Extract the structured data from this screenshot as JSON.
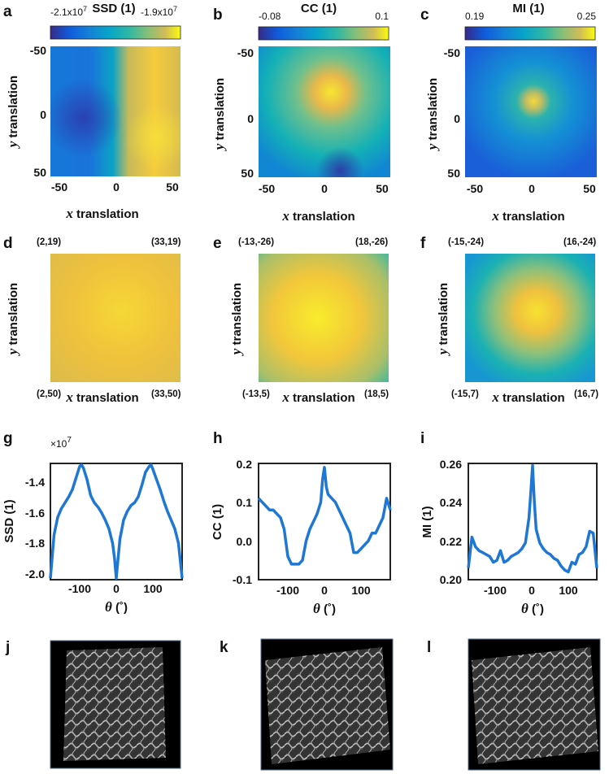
{
  "colors": {
    "line": "#1f77d4",
    "axis": "#222222",
    "text": "#111111"
  },
  "row1": {
    "panels": [
      {
        "label": "a",
        "title": "SSD (1)",
        "cmin": "-2.1x10",
        "cmin_exp": "7",
        "cmax": "-1.9x10",
        "cmax_exp": "7",
        "xticks": [
          "-50",
          "0",
          "50"
        ],
        "yticks": [
          "-50",
          "0",
          "50"
        ],
        "xlabel_var": "x",
        "xlabel_word": " translation",
        "ylabel_var": "y",
        "ylabel_word": " translation"
      },
      {
        "label": "b",
        "title": "CC (1)",
        "cmin": "-0.08",
        "cmin_exp": "",
        "cmax": "0.1",
        "cmax_exp": "",
        "xticks": [
          "-50",
          "0",
          "50"
        ],
        "yticks": [
          "-50",
          "0",
          "50"
        ],
        "xlabel_var": "x",
        "xlabel_word": " translation",
        "ylabel_var": "y",
        "ylabel_word": " translation"
      },
      {
        "label": "c",
        "title": "MI (1)",
        "cmin": "0.19",
        "cmin_exp": "",
        "cmax": "0.25",
        "cmax_exp": "",
        "xticks": [
          "-50",
          "0",
          "50"
        ],
        "yticks": [
          "-50",
          "0",
          "50"
        ],
        "xlabel_var": "x",
        "xlabel_word": " translation",
        "ylabel_var": "y",
        "ylabel_word": " translation"
      }
    ]
  },
  "row2": {
    "panels": [
      {
        "label": "d",
        "tl": "(2,19)",
        "tr": "(33,19)",
        "bl": "(2,50)",
        "br": "(33,50)",
        "xlabel_var": "x",
        "xlabel_word": " translation",
        "ylabel_var": "y",
        "ylabel_word": " translation"
      },
      {
        "label": "e",
        "tl": "(-13,-26)",
        "tr": "(18,-26)",
        "bl": "(-13,5)",
        "br": "(18,5)",
        "xlabel_var": "x",
        "xlabel_word": " translation",
        "ylabel_var": "y",
        "ylabel_word": " translation"
      },
      {
        "label": "f",
        "tl": "(-15,-24)",
        "tr": "(16,-24)",
        "bl": "(-15,7)",
        "br": "(16,7)",
        "xlabel_var": "x",
        "xlabel_word": " translation",
        "ylabel_var": "y",
        "ylabel_word": " translation"
      }
    ]
  },
  "row3": {
    "panels": [
      {
        "label": "g",
        "ylabel": "SSD (1)",
        "exponent_prefix": "×10",
        "exponent": "7",
        "yticks": [
          "-1.4",
          "-1.6",
          "-1.8",
          "-2.0"
        ],
        "xticks": [
          "-100",
          "0",
          "100"
        ],
        "xlabel_var": "θ",
        "xlabel_unit": " (˚)"
      },
      {
        "label": "h",
        "ylabel": "CC (1)",
        "exponent_prefix": "",
        "exponent": "",
        "yticks": [
          "0.2",
          "0.1",
          "0.0",
          "-0.1"
        ],
        "xticks": [
          "-100",
          "0",
          "100"
        ],
        "xlabel_var": "θ",
        "xlabel_unit": " (˚)"
      },
      {
        "label": "i",
        "ylabel": "MI (1)",
        "exponent_prefix": "",
        "exponent": "",
        "yticks": [
          "0.26",
          "0.24",
          "0.22",
          "0.20"
        ],
        "xticks": [
          "-100",
          "0",
          "100"
        ],
        "xlabel_var": "θ",
        "xlabel_unit": " (˚)"
      }
    ]
  },
  "row4": {
    "labels": [
      "j",
      "k",
      "l"
    ]
  },
  "chart_data": [
    {
      "type": "line",
      "panel": "g",
      "ylabel": "SSD (1)",
      "y_multiplier": "x10^7",
      "xlim": [
        -180,
        180
      ],
      "ylim": [
        -2.03,
        -1.23
      ],
      "x": [
        -180,
        -170,
        -160,
        -150,
        -140,
        -130,
        -120,
        -110,
        -100,
        -95,
        -90,
        -80,
        -70,
        -60,
        -50,
        -40,
        -30,
        -20,
        -10,
        -5,
        0,
        5,
        10,
        20,
        30,
        40,
        50,
        60,
        70,
        80,
        90,
        95,
        100,
        110,
        120,
        130,
        140,
        150,
        160,
        170,
        180
      ],
      "values": [
        -2.02,
        -1.72,
        -1.6,
        -1.54,
        -1.5,
        -1.46,
        -1.41,
        -1.33,
        -1.25,
        -1.24,
        -1.26,
        -1.34,
        -1.45,
        -1.5,
        -1.53,
        -1.57,
        -1.62,
        -1.68,
        -1.78,
        -1.88,
        -2.02,
        -1.88,
        -1.75,
        -1.62,
        -1.56,
        -1.52,
        -1.5,
        -1.46,
        -1.38,
        -1.29,
        -1.25,
        -1.24,
        -1.27,
        -1.34,
        -1.41,
        -1.49,
        -1.56,
        -1.62,
        -1.68,
        -1.78,
        -2.02
      ]
    },
    {
      "type": "line",
      "panel": "h",
      "ylabel": "CC (1)",
      "xlim": [
        -180,
        180
      ],
      "ylim": [
        -0.1,
        0.2
      ],
      "x": [
        -180,
        -170,
        -160,
        -150,
        -140,
        -130,
        -120,
        -110,
        -100,
        -90,
        -80,
        -70,
        -60,
        -50,
        -40,
        -30,
        -20,
        -10,
        -5,
        0,
        5,
        10,
        20,
        30,
        40,
        50,
        60,
        70,
        80,
        90,
        100,
        110,
        120,
        130,
        140,
        150,
        160,
        170,
        180
      ],
      "values": [
        0.11,
        0.1,
        0.09,
        0.08,
        0.08,
        0.07,
        0.06,
        0.03,
        -0.04,
        -0.06,
        -0.06,
        -0.06,
        -0.05,
        0.0,
        0.03,
        0.05,
        0.07,
        0.1,
        0.16,
        0.19,
        0.14,
        0.12,
        0.11,
        0.1,
        0.08,
        0.06,
        0.04,
        0.02,
        -0.03,
        -0.03,
        -0.02,
        -0.01,
        0.0,
        0.02,
        0.02,
        0.04,
        0.06,
        0.11,
        0.08
      ]
    },
    {
      "type": "line",
      "panel": "i",
      "ylabel": "MI (1)",
      "xlim": [
        -180,
        180
      ],
      "ylim": [
        0.2,
        0.26
      ],
      "x": [
        -180,
        -170,
        -160,
        -150,
        -140,
        -130,
        -120,
        -110,
        -100,
        -90,
        -80,
        -70,
        -60,
        -50,
        -40,
        -30,
        -20,
        -10,
        -5,
        0,
        5,
        10,
        20,
        30,
        40,
        50,
        60,
        70,
        80,
        90,
        100,
        110,
        120,
        130,
        140,
        150,
        160,
        170,
        180
      ],
      "values": [
        0.206,
        0.222,
        0.217,
        0.215,
        0.214,
        0.213,
        0.212,
        0.209,
        0.21,
        0.215,
        0.209,
        0.21,
        0.212,
        0.213,
        0.214,
        0.216,
        0.219,
        0.232,
        0.245,
        0.259,
        0.24,
        0.226,
        0.219,
        0.216,
        0.214,
        0.213,
        0.211,
        0.21,
        0.207,
        0.205,
        0.204,
        0.209,
        0.208,
        0.213,
        0.214,
        0.217,
        0.225,
        0.224,
        0.206
      ]
    }
  ]
}
